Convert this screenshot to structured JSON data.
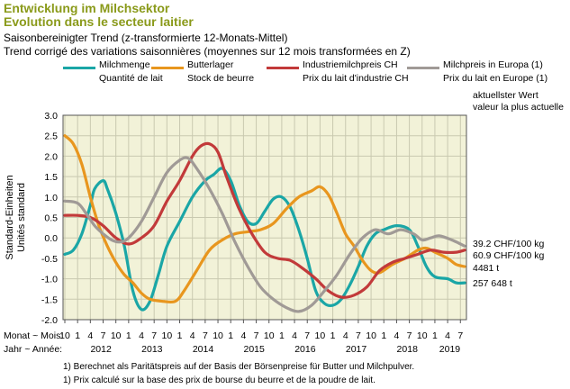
{
  "header": {
    "title_line1": "Entwicklung im Milchsektor",
    "title_line2": "Evolution dans le secteur laitier",
    "subtitle_line1": "Saisonbereinigter Trend (z-transformierte 12-Monats-Mittel)",
    "subtitle_line2": "Trend corrigé des variations saisonnières (moyennes sur 12 mois transformées en Z)"
  },
  "legend": [
    {
      "label_de": "Milchmenge",
      "label_fr": "Quantité de lait",
      "color": "#1aa6a6"
    },
    {
      "label_de": "Butterlager",
      "label_fr": "Stock de beurre",
      "color": "#e8961e"
    },
    {
      "label_de": "Industriemilchpreis CH",
      "label_fr": "Prix du lait d'industrie CH",
      "color": "#c23a3a"
    },
    {
      "label_de": "Milchpreis in Europa (1)",
      "label_fr": "Prix du lait en Europe (1)",
      "color": "#a09a96"
    }
  ],
  "latest_value": {
    "label_de": "aktuellster Wert",
    "label_fr": "valeur la plus actuelle",
    "values": [
      "39.2 CHF/100 kg",
      "60.9 CHF/100 kg",
      "4481 t",
      "257 648 t"
    ]
  },
  "axis_row_labels": {
    "month_row": "Monat ~ Mois:",
    "year_row": "Jahr ~ Année:"
  },
  "footnotes": [
    "1)  Berechnet als Paritätspreis auf der Basis der Börsenpreise für Butter und Milchpulver.",
    "1)  Prix calculé sur la base des prix de bourse du beurre et de la poudre de lait."
  ],
  "chart_data": {
    "type": "line",
    "ylabel": "Standard-Einheiten\nUnités standard",
    "ylim": [
      -2.0,
      3.0
    ],
    "yticks": [
      -2.0,
      -1.5,
      -1.0,
      -0.5,
      0.0,
      0.5,
      1.0,
      1.5,
      2.0,
      2.5,
      3.0
    ],
    "x_start": "2011-10",
    "x_end": "2019-08",
    "month_ticks": [
      10,
      1,
      4,
      7
    ],
    "years": [
      "2012",
      "2013",
      "2014",
      "2015",
      "2016",
      "2017",
      "2018",
      "2019"
    ],
    "grid": true,
    "background": "#f2f2d8",
    "series": [
      {
        "name": "Milchmenge",
        "color": "#1aa6a6",
        "points": [
          [
            "2011-10",
            -0.4
          ],
          [
            "2011-12",
            -0.3
          ],
          [
            "2012-02",
            0.1
          ],
          [
            "2012-04",
            0.8
          ],
          [
            "2012-05",
            1.2
          ],
          [
            "2012-07",
            1.4
          ],
          [
            "2012-08",
            1.2
          ],
          [
            "2012-10",
            0.6
          ],
          [
            "2012-12",
            -0.2
          ],
          [
            "2013-02",
            -1.3
          ],
          [
            "2013-04",
            -1.75
          ],
          [
            "2013-06",
            -1.55
          ],
          [
            "2013-08",
            -0.9
          ],
          [
            "2013-10",
            -0.2
          ],
          [
            "2014-01",
            0.4
          ],
          [
            "2014-04",
            1.0
          ],
          [
            "2014-07",
            1.4
          ],
          [
            "2014-09",
            1.55
          ],
          [
            "2014-11",
            1.7
          ],
          [
            "2015-01",
            1.4
          ],
          [
            "2015-03",
            0.8
          ],
          [
            "2015-05",
            0.4
          ],
          [
            "2015-07",
            0.35
          ],
          [
            "2015-09",
            0.65
          ],
          [
            "2015-11",
            0.95
          ],
          [
            "2016-01",
            1.0
          ],
          [
            "2016-03",
            0.75
          ],
          [
            "2016-05",
            0.2
          ],
          [
            "2016-07",
            -0.5
          ],
          [
            "2016-09",
            -1.3
          ],
          [
            "2016-11",
            -1.6
          ],
          [
            "2017-01",
            -1.65
          ],
          [
            "2017-03",
            -1.5
          ],
          [
            "2017-05",
            -1.15
          ],
          [
            "2017-07",
            -0.7
          ],
          [
            "2017-09",
            -0.2
          ],
          [
            "2017-11",
            0.1
          ],
          [
            "2018-01",
            0.2
          ],
          [
            "2018-04",
            0.3
          ],
          [
            "2018-07",
            0.2
          ],
          [
            "2018-09",
            -0.2
          ],
          [
            "2018-11",
            -0.7
          ],
          [
            "2019-01",
            -0.95
          ],
          [
            "2019-04",
            -1.0
          ],
          [
            "2019-06",
            -1.1
          ],
          [
            "2019-08",
            -1.1
          ]
        ]
      },
      {
        "name": "Butterlager",
        "color": "#e8961e",
        "points": [
          [
            "2011-10",
            2.5
          ],
          [
            "2011-12",
            2.3
          ],
          [
            "2012-02",
            1.8
          ],
          [
            "2012-04",
            1.0
          ],
          [
            "2012-06",
            0.3
          ],
          [
            "2012-08",
            -0.2
          ],
          [
            "2012-10",
            -0.6
          ],
          [
            "2012-12",
            -0.9
          ],
          [
            "2013-02",
            -1.1
          ],
          [
            "2013-04",
            -1.35
          ],
          [
            "2013-06",
            -1.5
          ],
          [
            "2013-09",
            -1.55
          ],
          [
            "2013-12",
            -1.55
          ],
          [
            "2014-02",
            -1.3
          ],
          [
            "2014-05",
            -0.8
          ],
          [
            "2014-08",
            -0.3
          ],
          [
            "2014-11",
            -0.05
          ],
          [
            "2015-02",
            0.1
          ],
          [
            "2015-05",
            0.15
          ],
          [
            "2015-08",
            0.2
          ],
          [
            "2015-11",
            0.35
          ],
          [
            "2016-02",
            0.7
          ],
          [
            "2016-05",
            1.0
          ],
          [
            "2016-08",
            1.15
          ],
          [
            "2016-10",
            1.25
          ],
          [
            "2016-12",
            1.05
          ],
          [
            "2017-02",
            0.6
          ],
          [
            "2017-04",
            0.1
          ],
          [
            "2017-06",
            -0.2
          ],
          [
            "2017-08",
            -0.55
          ],
          [
            "2017-10",
            -0.8
          ],
          [
            "2017-12",
            -0.85
          ],
          [
            "2018-03",
            -0.65
          ],
          [
            "2018-06",
            -0.5
          ],
          [
            "2018-09",
            -0.3
          ],
          [
            "2018-11",
            -0.25
          ],
          [
            "2019-01",
            -0.35
          ],
          [
            "2019-04",
            -0.5
          ],
          [
            "2019-06",
            -0.65
          ],
          [
            "2019-08",
            -0.7
          ]
        ]
      },
      {
        "name": "Industriemilchpreis CH",
        "color": "#c23a3a",
        "points": [
          [
            "2011-10",
            0.55
          ],
          [
            "2012-01",
            0.55
          ],
          [
            "2012-04",
            0.5
          ],
          [
            "2012-07",
            0.3
          ],
          [
            "2012-10",
            0.0
          ],
          [
            "2013-01",
            -0.15
          ],
          [
            "2013-04",
            0.0
          ],
          [
            "2013-07",
            0.3
          ],
          [
            "2013-10",
            0.9
          ],
          [
            "2014-01",
            1.4
          ],
          [
            "2014-04",
            2.0
          ],
          [
            "2014-06",
            2.25
          ],
          [
            "2014-08",
            2.3
          ],
          [
            "2014-10",
            2.1
          ],
          [
            "2014-12",
            1.5
          ],
          [
            "2015-03",
            0.7
          ],
          [
            "2015-06",
            0.1
          ],
          [
            "2015-09",
            -0.35
          ],
          [
            "2015-12",
            -0.5
          ],
          [
            "2016-03",
            -0.55
          ],
          [
            "2016-06",
            -0.75
          ],
          [
            "2016-09",
            -1.0
          ],
          [
            "2016-12",
            -1.3
          ],
          [
            "2017-03",
            -1.45
          ],
          [
            "2017-06",
            -1.4
          ],
          [
            "2017-09",
            -1.2
          ],
          [
            "2017-12",
            -0.8
          ],
          [
            "2018-03",
            -0.6
          ],
          [
            "2018-06",
            -0.5
          ],
          [
            "2018-09",
            -0.4
          ],
          [
            "2018-12",
            -0.3
          ],
          [
            "2019-03",
            -0.35
          ],
          [
            "2019-06",
            -0.35
          ],
          [
            "2019-08",
            -0.3
          ]
        ]
      },
      {
        "name": "Milchpreis in Europa (1)",
        "color": "#a09a96",
        "points": [
          [
            "2011-10",
            0.9
          ],
          [
            "2012-01",
            0.85
          ],
          [
            "2012-03",
            0.6
          ],
          [
            "2012-05",
            0.3
          ],
          [
            "2012-07",
            0.1
          ],
          [
            "2012-09",
            -0.05
          ],
          [
            "2012-11",
            -0.1
          ],
          [
            "2013-01",
            0.0
          ],
          [
            "2013-04",
            0.4
          ],
          [
            "2013-07",
            1.0
          ],
          [
            "2013-10",
            1.6
          ],
          [
            "2014-01",
            1.9
          ],
          [
            "2014-03",
            1.95
          ],
          [
            "2014-05",
            1.7
          ],
          [
            "2014-08",
            1.2
          ],
          [
            "2014-11",
            0.6
          ],
          [
            "2015-02",
            -0.1
          ],
          [
            "2015-05",
            -0.7
          ],
          [
            "2015-08",
            -1.2
          ],
          [
            "2015-11",
            -1.5
          ],
          [
            "2016-02",
            -1.7
          ],
          [
            "2016-05",
            -1.8
          ],
          [
            "2016-08",
            -1.65
          ],
          [
            "2016-11",
            -1.3
          ],
          [
            "2017-02",
            -0.9
          ],
          [
            "2017-05",
            -0.4
          ],
          [
            "2017-08",
            0.0
          ],
          [
            "2017-11",
            0.2
          ],
          [
            "2018-02",
            0.1
          ],
          [
            "2018-05",
            0.2
          ],
          [
            "2018-08",
            0.1
          ],
          [
            "2018-10",
            -0.05
          ],
          [
            "2018-12",
            0.0
          ],
          [
            "2019-02",
            0.05
          ],
          [
            "2019-05",
            -0.05
          ],
          [
            "2019-08",
            -0.2
          ]
        ]
      }
    ]
  }
}
